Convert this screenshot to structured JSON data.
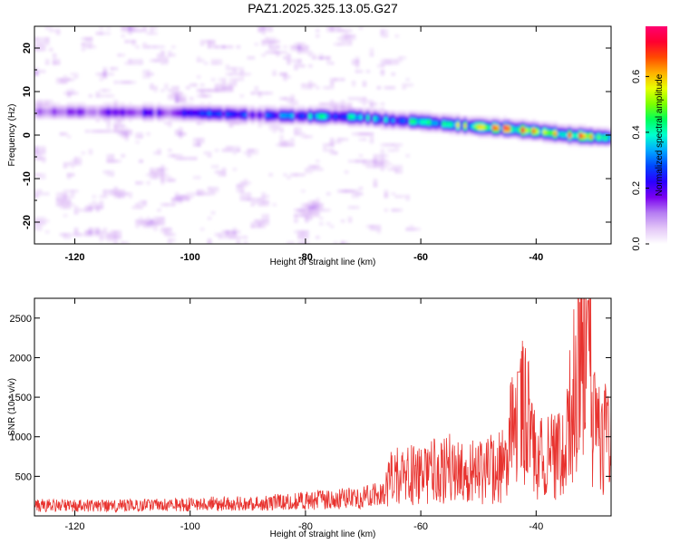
{
  "title": "PAZ1.2025.325.13.05.G27",
  "colors": {
    "snr_line": "#e8332f",
    "axes": "#000000",
    "background": "#ffffff",
    "colormap": [
      "#ffffff",
      "#e3c6f7",
      "#b57cf2",
      "#7a00f0",
      "#2a00ff",
      "#0047ff",
      "#00a8ff",
      "#00ffd0",
      "#00ff5a",
      "#7cff00",
      "#e8ff00",
      "#ffb000",
      "#ff4a00",
      "#ff0030",
      "#ff0070"
    ]
  },
  "chart_data": [
    {
      "type": "heatmap",
      "title": "PAZ1.2025.325.13.05.G27",
      "xlabel": "Height of straight line (km)",
      "ylabel": "Frequency (Hz)",
      "xlim": [
        -127,
        -27
      ],
      "ylim": [
        -25,
        25
      ],
      "xticks": [
        -120,
        -100,
        -80,
        -60,
        -40
      ],
      "yticks": [
        -20,
        -10,
        0,
        10,
        20
      ],
      "colorbar_label": "Normalized spectral amplitude",
      "colorbar_range": [
        0,
        0.78
      ],
      "colorbar_ticks": [
        0,
        0.2,
        0.4,
        0.6
      ],
      "ridge": {
        "x": [
          -127,
          -100,
          -95,
          -90,
          -85,
          -80,
          -75,
          -70,
          -65,
          -60,
          -55,
          -50,
          -45,
          -40,
          -35,
          -30,
          -27
        ],
        "freq": [
          5.5,
          5.2,
          5.0,
          4.8,
          4.6,
          4.5,
          4.4,
          4.2,
          3.5,
          3.2,
          2.6,
          2.0,
          1.6,
          1.0,
          0.2,
          -0.3,
          -0.5
        ],
        "peak_amplitude": [
          0.12,
          0.22,
          0.28,
          0.24,
          0.26,
          0.34,
          0.38,
          0.36,
          0.3,
          0.42,
          0.48,
          0.5,
          0.66,
          0.56,
          0.58,
          0.55,
          0.45
        ]
      },
      "noise_region": {
        "x_end": -65,
        "freq_range": [
          -25,
          25
        ],
        "typical_amplitude": 0.12
      }
    },
    {
      "type": "line",
      "xlabel": "Height of straight line (km)",
      "ylabel": "SNR (10 * v/v)",
      "xlim": [
        -127,
        -27
      ],
      "ylim": [
        0,
        2750
      ],
      "xticks": [
        -120,
        -100,
        -80,
        -60,
        -40
      ],
      "yticks": [
        500,
        1000,
        1500,
        2000,
        2500
      ],
      "series": [
        {
          "name": "SNR",
          "x": [
            -127,
            -120,
            -110,
            -100,
            -90,
            -80,
            -70,
            -66,
            -65,
            -60,
            -55,
            -50,
            -45,
            -43,
            -40,
            -35,
            -31,
            -30,
            -27
          ],
          "y": [
            150,
            140,
            145,
            160,
            180,
            210,
            260,
            320,
            500,
            520,
            620,
            560,
            640,
            1820,
            700,
            800,
            2720,
            1050,
            1000
          ]
        }
      ]
    }
  ]
}
